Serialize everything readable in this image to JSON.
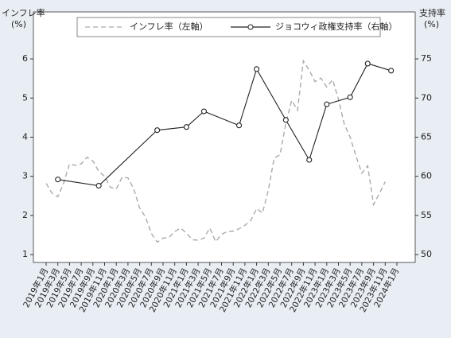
{
  "chart_data": {
    "type": "line",
    "ylabel": [
      "インフレ率",
      "(%)"
    ],
    "y2label": [
      "支持率",
      "(%)"
    ],
    "categories": [
      "2019年1月",
      null,
      "2019年3月",
      null,
      "2019年5月",
      null,
      "2019年7月",
      null,
      "2019年9月",
      null,
      "2019年11月",
      null,
      "2020年1月",
      null,
      "2020年3月",
      null,
      "2020年5月",
      null,
      "2020年7月",
      null,
      "2020年9月",
      null,
      "2020年11月",
      null,
      "2021年1月",
      null,
      "2021年3月",
      null,
      "2021年5月",
      null,
      "2021年7月",
      null,
      "2021年9月",
      null,
      "2021年11月",
      null,
      "2022年1月",
      null,
      "2022年3月",
      null,
      "2022年5月",
      null,
      "2022年7月",
      null,
      "2022年9月",
      null,
      "2022年11月",
      null,
      "2023年1月",
      null,
      "2023年3月",
      null,
      "2023年5月",
      null,
      "2023年7月",
      null,
      "2023年9月",
      null,
      "2023年11月",
      null,
      "2024年1月"
    ],
    "series": [
      {
        "name": "インフレ率（左軸）",
        "color": "#aaaaaa",
        "dash": true,
        "markers": false,
        "connect_gaps": false,
        "values": [
          2.82,
          2.57,
          2.48,
          2.83,
          3.32,
          3.28,
          3.32,
          3.49,
          3.39,
          3.13,
          3.0,
          2.72,
          2.68,
          2.98,
          2.96,
          2.67,
          2.19,
          1.96,
          1.54,
          1.32,
          1.42,
          1.44,
          1.59,
          1.68,
          1.55,
          1.38,
          1.37,
          1.42,
          1.68,
          1.33,
          1.52,
          1.59,
          1.6,
          1.66,
          1.75,
          1.87,
          2.18,
          2.06,
          2.64,
          3.47,
          3.55,
          4.35,
          4.94,
          4.69,
          5.95,
          5.71,
          5.42,
          5.51,
          5.28,
          5.47,
          4.97,
          4.33,
          4.0,
          3.52,
          3.08,
          3.27,
          2.28,
          2.56,
          2.86,
          null,
          null
        ]
      },
      {
        "name": "ジョコウィ政権支持率（右軸）",
        "color": "#222222",
        "dash": false,
        "markers": true,
        "connect_gaps": true,
        "axis": "y2",
        "values": [
          null,
          null,
          59.6,
          null,
          null,
          null,
          null,
          null,
          null,
          58.8,
          null,
          null,
          null,
          null,
          null,
          null,
          null,
          null,
          null,
          65.9,
          null,
          null,
          null,
          null,
          66.3,
          null,
          null,
          68.3,
          null,
          null,
          null,
          null,
          null,
          66.5,
          null,
          null,
          73.7,
          null,
          null,
          null,
          null,
          67.2,
          null,
          null,
          null,
          62.1,
          null,
          null,
          69.2,
          null,
          null,
          null,
          70.1,
          null,
          null,
          74.4,
          null,
          null,
          null,
          73.5,
          null
        ]
      }
    ],
    "ylim": [
      0.8,
      7.2
    ],
    "yticks": [
      1,
      2,
      3,
      4,
      5,
      6
    ],
    "y2lim": [
      49,
      81
    ],
    "y2ticks": [
      50,
      55,
      60,
      65,
      70,
      75
    ],
    "grid": false,
    "legend": "top"
  }
}
